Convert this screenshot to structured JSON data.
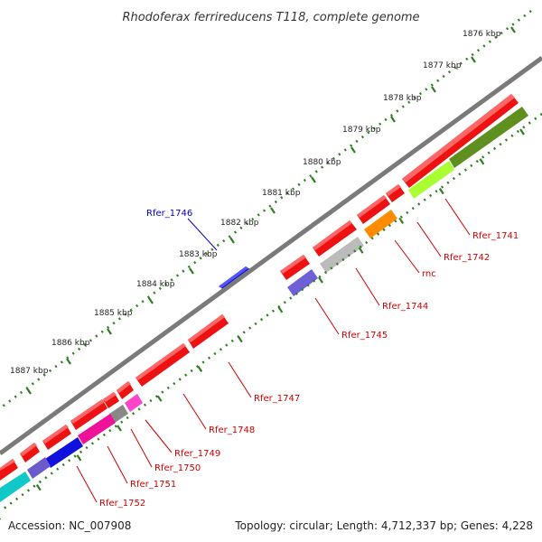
{
  "title": "Rhodoferax ferrireducens T118, complete genome",
  "footer": {
    "accession": "Accession: NC_007908",
    "summary": "Topology: circular; Length: 4,712,337 bp; Genes: 4,228"
  },
  "colors": {
    "backbone": "#808080",
    "tick_dots": "#2e7d22",
    "label_red": "#cc0000",
    "label_blue": "#0000cc",
    "gene_red": "#ee1111"
  },
  "scale_ticks": [
    {
      "label": "1876 kbp"
    },
    {
      "label": "1877 kbp"
    },
    {
      "label": "1878 kbp"
    },
    {
      "label": "1879 kbp"
    },
    {
      "label": "1880 kbp"
    },
    {
      "label": "1881 kbp"
    },
    {
      "label": "1882 kbp"
    },
    {
      "label": "1883 kbp"
    },
    {
      "label": "1884 kbp"
    },
    {
      "label": "1885 kbp"
    },
    {
      "label": "1886 kbp"
    },
    {
      "label": "1887 kbp"
    }
  ],
  "gene_labels": [
    {
      "text": "Rfer_1741",
      "color": "#cc0000"
    },
    {
      "text": "Rfer_1742",
      "color": "#cc0000"
    },
    {
      "text": "rnc",
      "color": "#cc0000"
    },
    {
      "text": "Rfer_1744",
      "color": "#cc0000"
    },
    {
      "text": "Rfer_1745",
      "color": "#cc0000"
    },
    {
      "text": "Rfer_1746",
      "color": "#0000cc"
    },
    {
      "text": "Rfer_1747",
      "color": "#cc0000"
    },
    {
      "text": "Rfer_1748",
      "color": "#cc0000"
    },
    {
      "text": "Rfer_1749",
      "color": "#cc0000"
    },
    {
      "text": "Rfer_1750",
      "color": "#cc0000"
    },
    {
      "text": "Rfer_1751",
      "color": "#cc0000"
    },
    {
      "text": "Rfer_1752",
      "color": "#cc0000"
    }
  ]
}
